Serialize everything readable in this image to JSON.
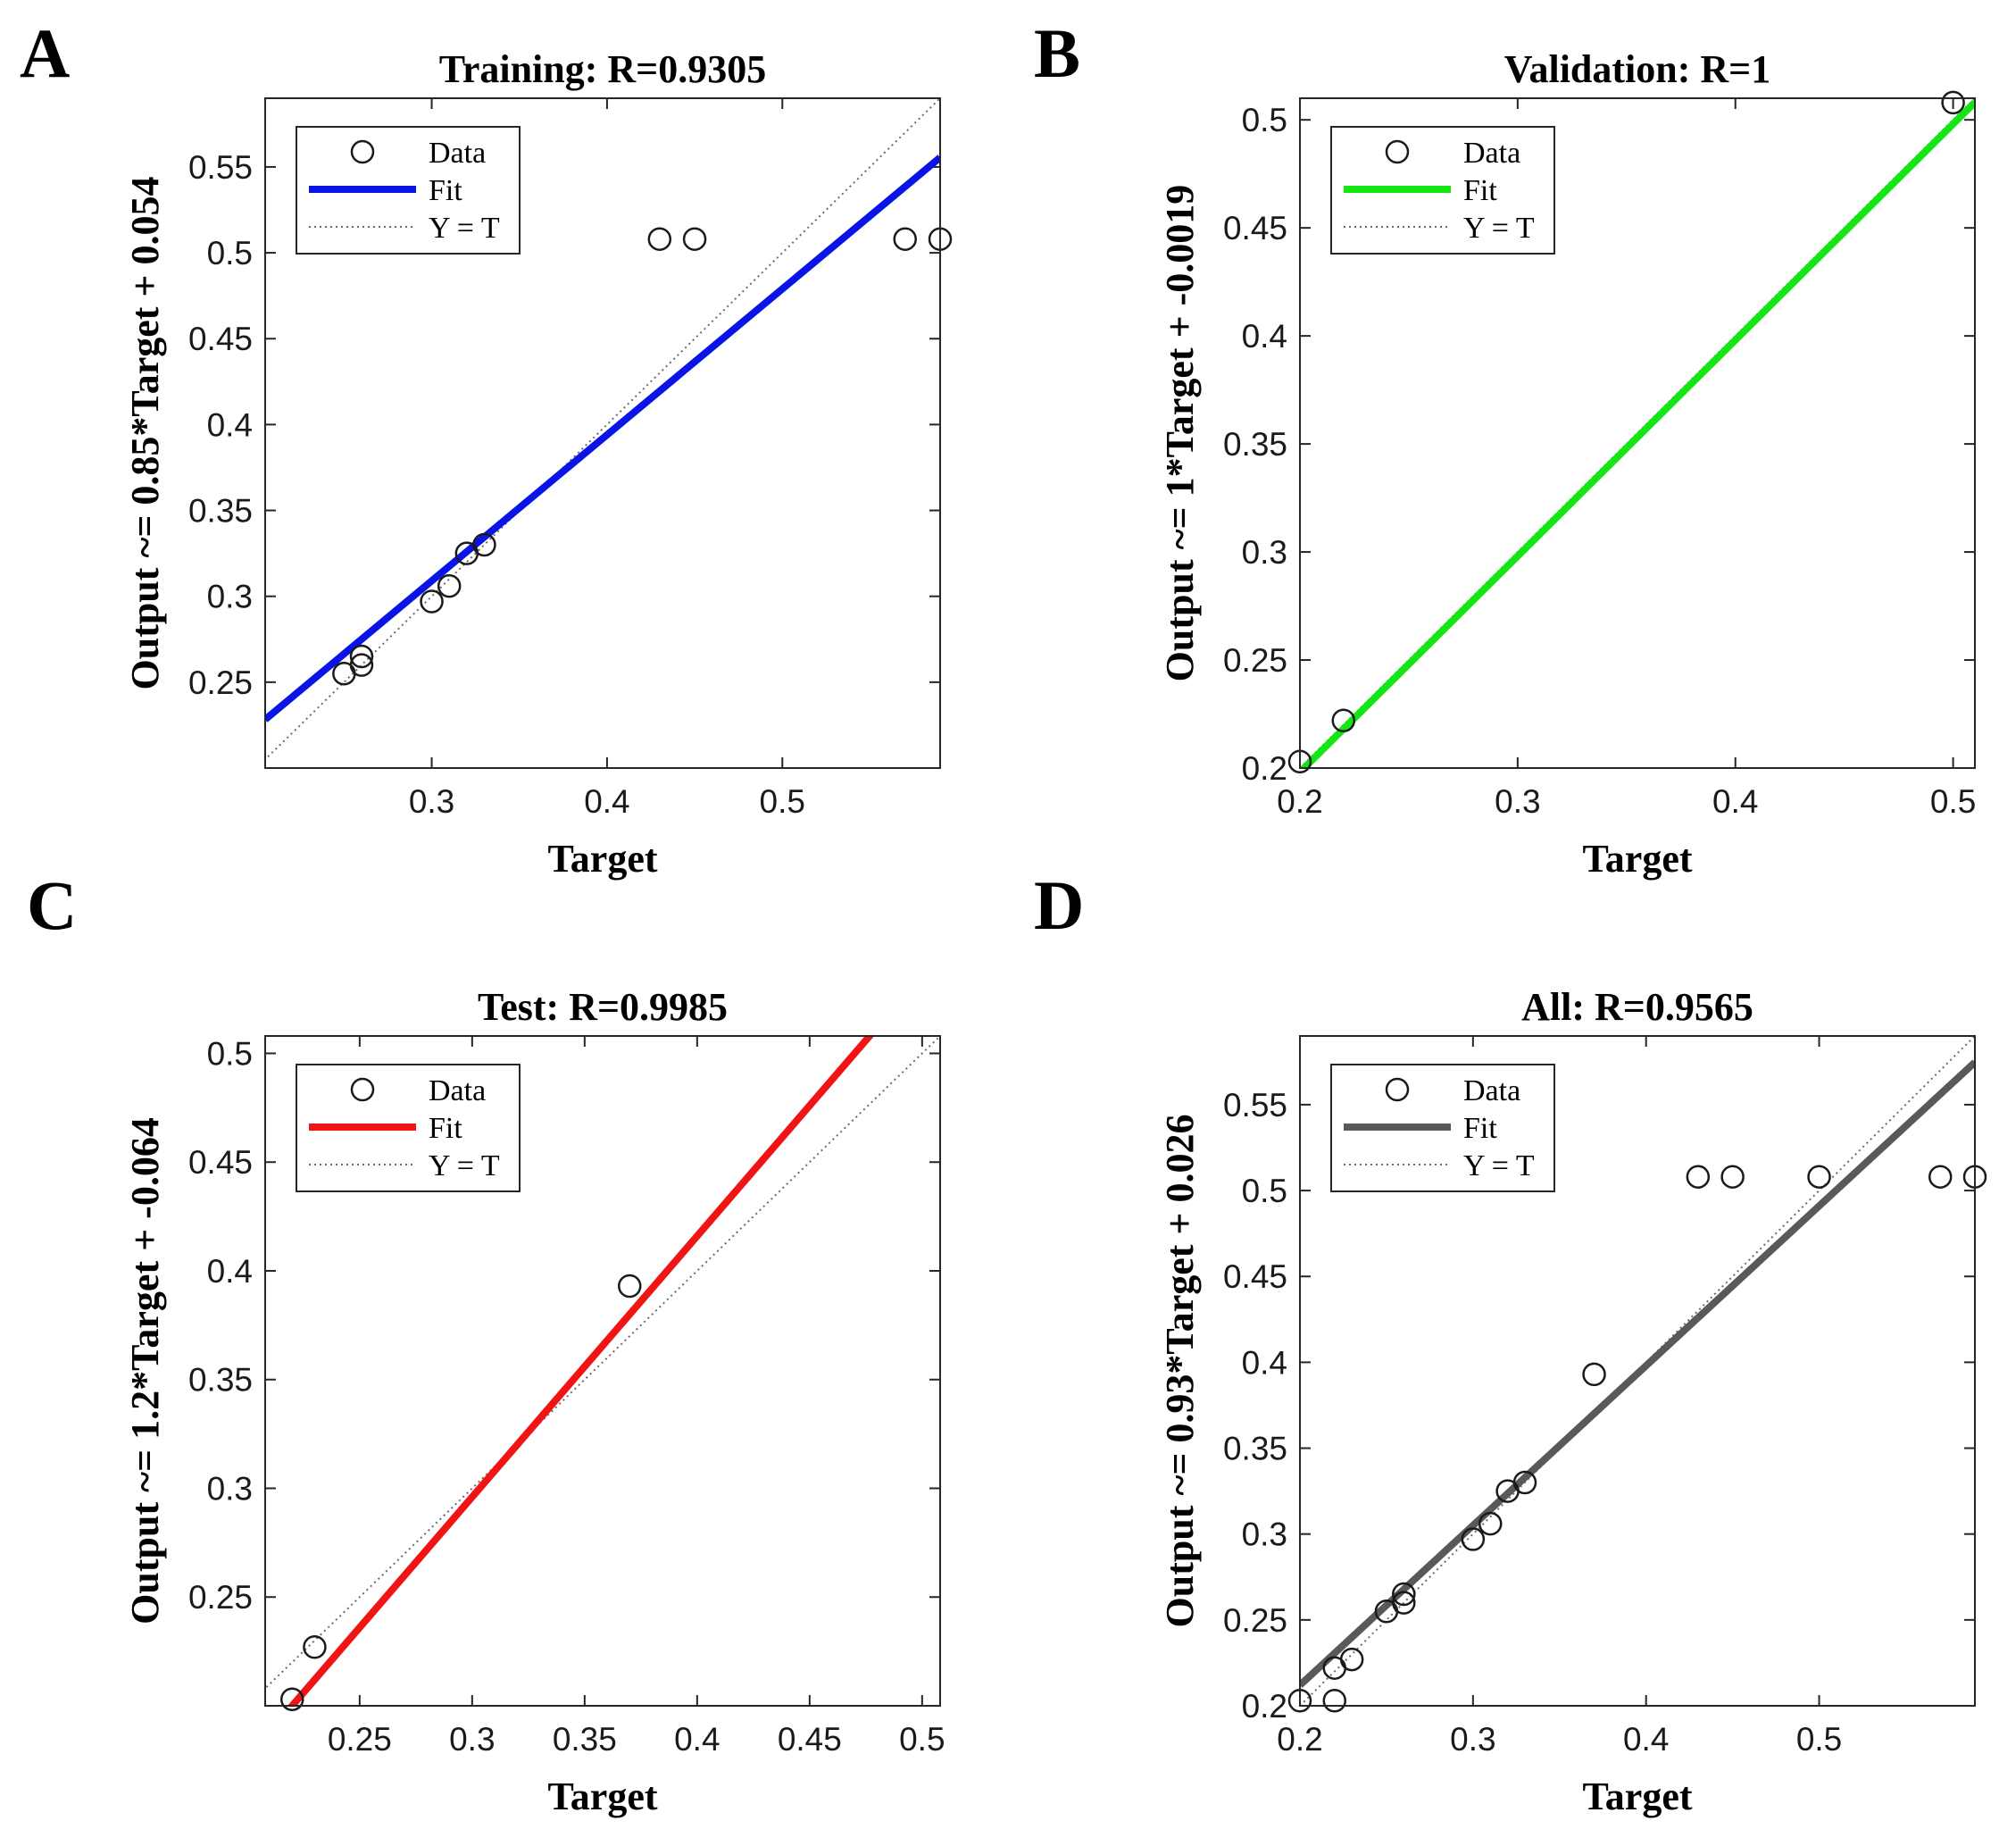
{
  "chart_data": [
    {
      "panel": "A",
      "type": "scatter",
      "title": "Training: R=0.9305",
      "xlabel": "Target",
      "ylabel": "Output ~= 0.85*Target + 0.054",
      "xlim": [
        0.205,
        0.59
      ],
      "ylim": [
        0.2,
        0.59
      ],
      "xticks": [
        0.3,
        0.4,
        0.5
      ],
      "xtick_labels": [
        "0.3",
        "0.4",
        "0.5"
      ],
      "yticks": [
        0.25,
        0.3,
        0.35,
        0.4,
        0.45,
        0.5,
        0.55
      ],
      "ytick_labels": [
        "0.25",
        "0.3",
        "0.35",
        "0.4",
        "0.45",
        "0.5",
        "0.55"
      ],
      "fit": {
        "slope": 0.85,
        "intercept": 0.054,
        "color": "#0a14e6"
      },
      "points": {
        "x": [
          0.25,
          0.26,
          0.26,
          0.3,
          0.31,
          0.32,
          0.33,
          0.43,
          0.45,
          0.57,
          0.59
        ],
        "y": [
          0.255,
          0.26,
          0.265,
          0.297,
          0.306,
          0.325,
          0.33,
          0.508,
          0.508,
          0.508,
          0.508
        ]
      },
      "legend": {
        "data_label": "Data",
        "fit_label": "Fit",
        "ref_label": "Y = T"
      }
    },
    {
      "panel": "B",
      "type": "scatter",
      "title": "Validation: R=1",
      "xlabel": "Target",
      "ylabel": "Output ~= 1*Target + -0.0019",
      "xlim": [
        0.2,
        0.51
      ],
      "ylim": [
        0.2,
        0.51
      ],
      "xticks": [
        0.2,
        0.3,
        0.4,
        0.5
      ],
      "xtick_labels": [
        "0.2",
        "0.3",
        "0.4",
        "0.5"
      ],
      "yticks": [
        0.2,
        0.25,
        0.3,
        0.35,
        0.4,
        0.45,
        0.5
      ],
      "ytick_labels": [
        "0.2",
        "0.25",
        "0.3",
        "0.35",
        "0.4",
        "0.45",
        "0.5"
      ],
      "fit": {
        "slope": 1.0,
        "intercept": -0.0019,
        "color": "#14e614"
      },
      "points": {
        "x": [
          0.2,
          0.22,
          0.5
        ],
        "y": [
          0.203,
          0.222,
          0.508
        ]
      },
      "legend": {
        "data_label": "Data",
        "fit_label": "Fit",
        "ref_label": "Y = T"
      }
    },
    {
      "panel": "C",
      "type": "scatter",
      "title": "Test: R=0.9985",
      "xlabel": "Target",
      "ylabel": "Output  ~= 1.2*Target + -0.064",
      "xlim": [
        0.208,
        0.508
      ],
      "ylim": [
        0.2,
        0.508
      ],
      "xticks": [
        0.25,
        0.3,
        0.35,
        0.4,
        0.45,
        0.5
      ],
      "xtick_labels": [
        "0.25",
        "0.3",
        "0.35",
        "0.4",
        "0.45",
        "0.5"
      ],
      "yticks": [
        0.25,
        0.3,
        0.35,
        0.4,
        0.45,
        0.5
      ],
      "ytick_labels": [
        "0.25",
        "0.3",
        "0.35",
        "0.4",
        "0.45",
        "0.5"
      ],
      "fit": {
        "slope": 1.2,
        "intercept": -0.064,
        "color": "#f01414"
      },
      "points": {
        "x": [
          0.22,
          0.23,
          0.37
        ],
        "y": [
          0.203,
          0.227,
          0.393
        ]
      },
      "legend": {
        "data_label": "Data",
        "fit_label": "Fit",
        "ref_label": "Y = T"
      }
    },
    {
      "panel": "D",
      "type": "scatter",
      "title": "All: R=0.9565",
      "xlabel": "Target",
      "ylabel": "Output  ~= 0.93*Target + 0.026",
      "xlim": [
        0.2,
        0.59
      ],
      "ylim": [
        0.2,
        0.59
      ],
      "xticks": [
        0.2,
        0.3,
        0.4,
        0.5
      ],
      "xtick_labels": [
        "0.2",
        "0.3",
        "0.4",
        "0.5"
      ],
      "yticks": [
        0.2,
        0.25,
        0.3,
        0.35,
        0.4,
        0.45,
        0.5,
        0.55
      ],
      "ytick_labels": [
        "0.2",
        "0.25",
        "0.3",
        "0.35",
        "0.4",
        "0.45",
        "0.5",
        "0.55"
      ],
      "fit": {
        "slope": 0.93,
        "intercept": 0.026,
        "color": "#595959"
      },
      "points": {
        "x": [
          0.2,
          0.22,
          0.22,
          0.23,
          0.25,
          0.26,
          0.26,
          0.3,
          0.31,
          0.32,
          0.33,
          0.37,
          0.43,
          0.45,
          0.5,
          0.57,
          0.59
        ],
        "y": [
          0.203,
          0.203,
          0.222,
          0.227,
          0.255,
          0.26,
          0.265,
          0.297,
          0.306,
          0.325,
          0.33,
          0.393,
          0.508,
          0.508,
          0.508,
          0.508,
          0.508
        ]
      },
      "legend": {
        "data_label": "Data",
        "fit_label": "Fit",
        "ref_label": "Y = T"
      }
    }
  ]
}
